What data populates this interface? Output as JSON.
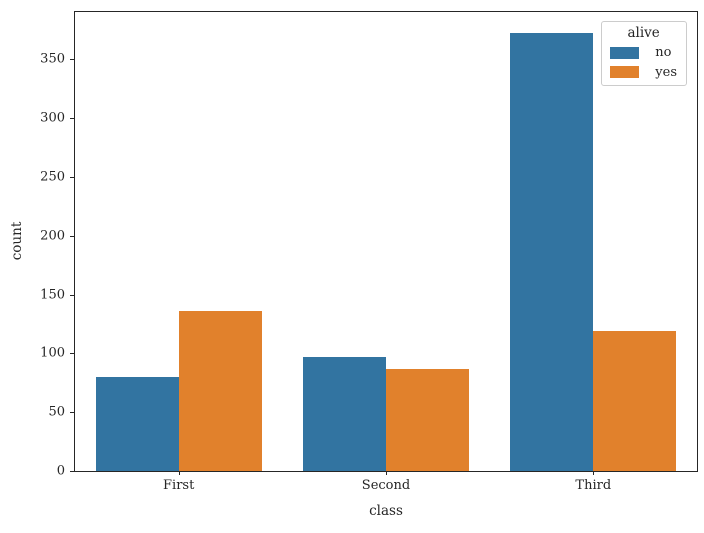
{
  "chart_data": {
    "type": "bar",
    "title": "",
    "xlabel": "class",
    "ylabel": "count",
    "categories": [
      "First",
      "Second",
      "Third"
    ],
    "series": [
      {
        "name": "no",
        "color": "#3274a1",
        "values": [
          80,
          97,
          372
        ]
      },
      {
        "name": "yes",
        "color": "#e1812c",
        "values": [
          136,
          87,
          119
        ]
      }
    ],
    "legend_title": "alive",
    "legend_position": "upper right",
    "ylim": [
      0,
      390
    ],
    "yticks": [
      0,
      50,
      100,
      150,
      200,
      250,
      300,
      350
    ],
    "grid": false,
    "bar_group_width_ratio": 0.8
  }
}
